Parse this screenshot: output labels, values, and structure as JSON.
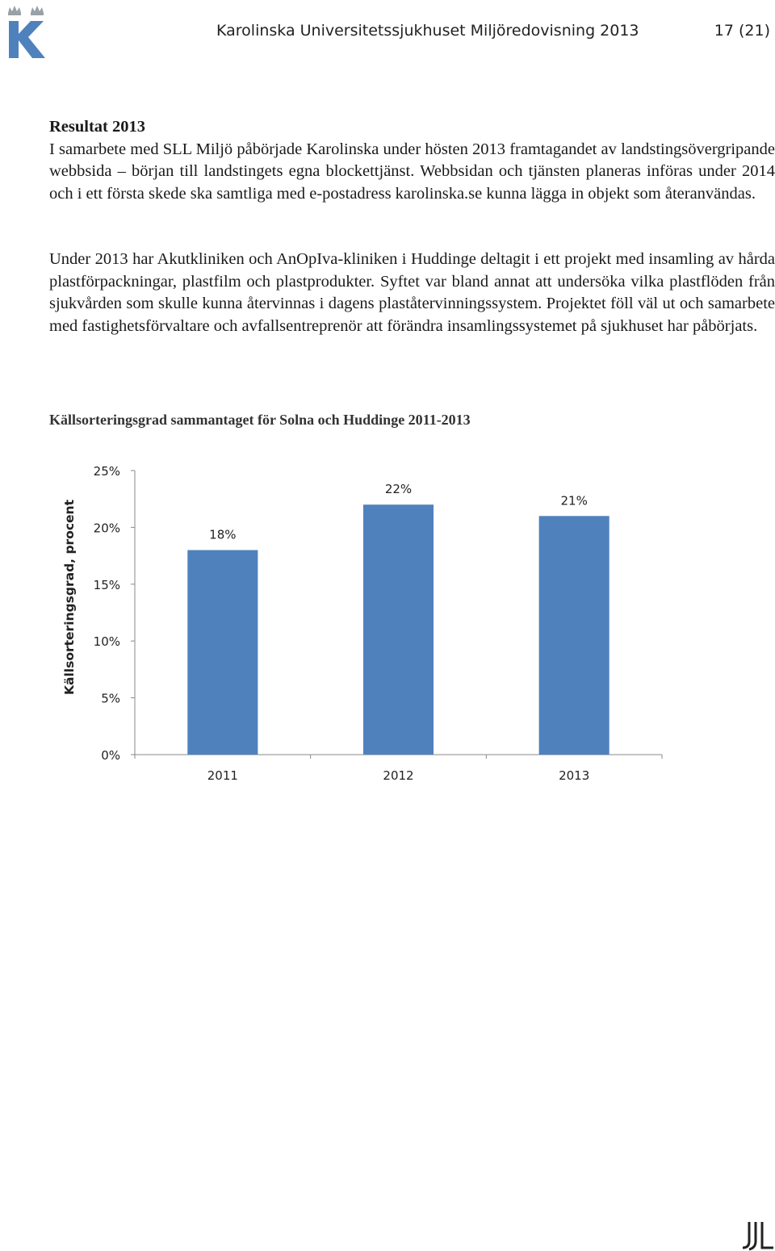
{
  "header": {
    "title": "Karolinska Universitetssjukhuset Miljöredovisning 2013",
    "page": "17 (21)",
    "logo_letter": "K",
    "brand_color": "#4f81bd"
  },
  "body": {
    "heading": "Resultat 2013",
    "para1": "I samarbete med SLL Miljö påbörjade Karolinska under hösten 2013 framtagandet av landstingsövergripande webbsida – början till landstingets egna blockettjänst. Webbsidan och tjänsten planeras införas under 2014 och i ett första skede ska samtliga med e-postadress karolinska.se kunna lägga in objekt som återanvändas.",
    "para2": "Under 2013 har Akutkliniken och AnOpIva-kliniken i Huddinge deltagit i ett projekt med insamling av hårda plastförpackningar, plastfilm och plastprodukter. Syftet var bland annat att undersöka vilka plastflöden från sjukvården som skulle kunna återvinnas i dagens plaståtervinningssystem. Projektet föll väl ut och samarbete med fastighetsförvaltare och avfallsentreprenör att förändra insamlingssystemet på sjukhuset har påbörjats."
  },
  "chart_data": {
    "type": "bar",
    "title": "Källsorteringsgrad sammantaget för Solna och Huddinge 2011-2013",
    "ylabel": "Källsorteringsgrad, procent",
    "xlabel": "",
    "categories": [
      "2011",
      "2012",
      "2013"
    ],
    "values": [
      18,
      22,
      21
    ],
    "data_labels": [
      "18%",
      "22%",
      "21%"
    ],
    "ylim": [
      0,
      25
    ],
    "yticks": [
      0,
      5,
      10,
      15,
      20,
      25
    ],
    "ytick_labels": [
      "0%",
      "5%",
      "10%",
      "15%",
      "20%",
      "25%"
    ],
    "bar_color": "#4f81bd",
    "grid": false
  }
}
